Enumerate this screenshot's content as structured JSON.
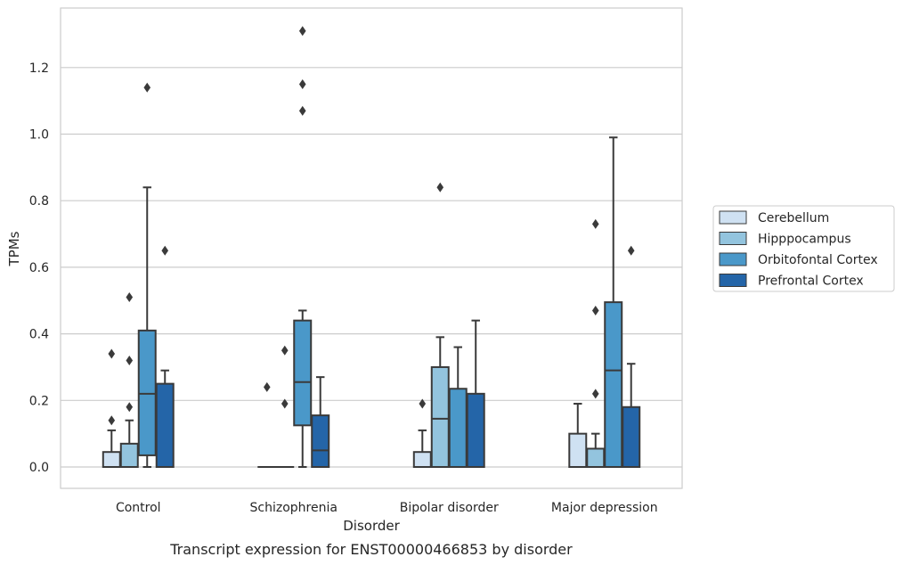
{
  "chart_data": {
    "type": "box",
    "title": "",
    "caption": "Transcript expression for ENST00000466853 by disorder",
    "xlabel": "Disorder",
    "ylabel": "TPMs",
    "ylim": [
      -0.065,
      1.38
    ],
    "yticks": [
      "0.0",
      "0.2",
      "0.4",
      "0.6",
      "0.8",
      "1.0",
      "1.2"
    ],
    "grid": "horizontal",
    "legend_position": "right",
    "categories": [
      "Control",
      "Schizophrenia",
      "Bipolar disorder",
      "Major depression"
    ],
    "series": [
      {
        "name": "Cerebellum",
        "color": "#cfe1f2",
        "boxes": [
          {
            "q1": 0,
            "median": 0,
            "q3": 0.045,
            "whisker_low": 0,
            "whisker_high": 0.11,
            "outliers": [
              0.14,
              0.34
            ]
          },
          {
            "q1": 0,
            "median": 0,
            "q3": 0,
            "whisker_low": 0,
            "whisker_high": 0,
            "outliers": [
              0.24
            ]
          },
          {
            "q1": 0,
            "median": 0,
            "q3": 0.045,
            "whisker_low": 0,
            "whisker_high": 0.11,
            "outliers": [
              0.19
            ]
          },
          {
            "q1": 0,
            "median": 0,
            "q3": 0.1,
            "whisker_low": 0,
            "whisker_high": 0.19,
            "outliers": []
          }
        ]
      },
      {
        "name": "Hipppocampus",
        "color": "#93c4de",
        "boxes": [
          {
            "q1": 0,
            "median": 0,
            "q3": 0.07,
            "whisker_low": 0,
            "whisker_high": 0.14,
            "outliers": [
              0.18,
              0.32,
              0.51
            ]
          },
          {
            "q1": 0,
            "median": 0,
            "q3": 0,
            "whisker_low": 0,
            "whisker_high": 0,
            "outliers": [
              0.19,
              0.35
            ]
          },
          {
            "q1": 0,
            "median": 0.145,
            "q3": 0.3,
            "whisker_low": 0,
            "whisker_high": 0.39,
            "outliers": [
              0.84
            ]
          },
          {
            "q1": 0,
            "median": 0,
            "q3": 0.055,
            "whisker_low": 0,
            "whisker_high": 0.1,
            "outliers": [
              0.22,
              0.47,
              0.73
            ]
          }
        ]
      },
      {
        "name": "Orbitofontal Cortex",
        "color": "#4a98c9",
        "boxes": [
          {
            "q1": 0.035,
            "median": 0.22,
            "q3": 0.41,
            "whisker_low": 0,
            "whisker_high": 0.84,
            "outliers": [
              1.14
            ]
          },
          {
            "q1": 0.125,
            "median": 0.255,
            "q3": 0.44,
            "whisker_low": 0,
            "whisker_high": 0.47,
            "outliers": [
              1.07,
              1.15,
              1.31
            ]
          },
          {
            "q1": 0,
            "median": 0,
            "q3": 0.235,
            "whisker_low": 0,
            "whisker_high": 0.36,
            "outliers": []
          },
          {
            "q1": 0,
            "median": 0.29,
            "q3": 0.495,
            "whisker_low": 0,
            "whisker_high": 0.99,
            "outliers": []
          }
        ]
      },
      {
        "name": "Prefrontal Cortex",
        "color": "#2465a8",
        "boxes": [
          {
            "q1": 0,
            "median": 0,
            "q3": 0.25,
            "whisker_low": 0,
            "whisker_high": 0.29,
            "outliers": [
              0.65
            ]
          },
          {
            "q1": 0,
            "median": 0.05,
            "q3": 0.155,
            "whisker_low": 0,
            "whisker_high": 0.27,
            "outliers": []
          },
          {
            "q1": 0,
            "median": 0,
            "q3": 0.22,
            "whisker_low": 0,
            "whisker_high": 0.44,
            "outliers": []
          },
          {
            "q1": 0,
            "median": 0,
            "q3": 0.18,
            "whisker_low": 0,
            "whisker_high": 0.31,
            "outliers": [
              0.65
            ]
          }
        ]
      }
    ]
  }
}
